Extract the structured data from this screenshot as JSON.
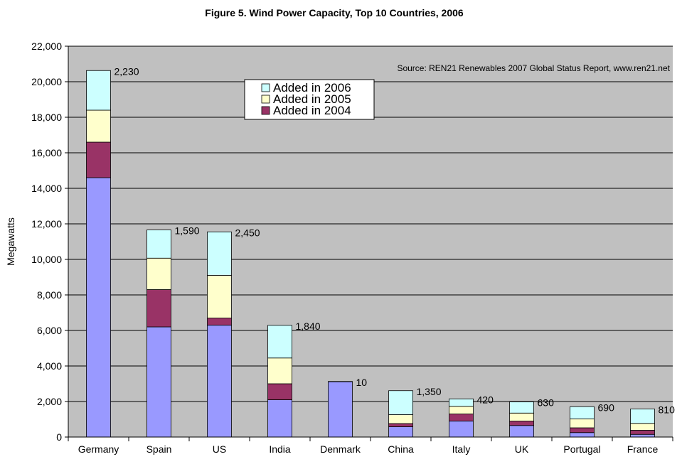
{
  "chart_data": {
    "type": "bar",
    "stacked": true,
    "title": "Figure 5. Wind Power Capacity, Top 10 Countries, 2006",
    "ylabel": "Megawatts",
    "xlabel": "",
    "ylim": [
      0,
      22000
    ],
    "y_ticks": [
      "0",
      "2,000",
      "4,000",
      "6,000",
      "8,000",
      "10,000",
      "12,000",
      "14,000",
      "16,000",
      "18,000",
      "20,000",
      "22,000"
    ],
    "grid": true,
    "legend_position": "top-center",
    "source_note": "Source: REN21 Renewables 2007 Global Status Report, www.ren21.net",
    "categories": [
      "Germany",
      "Spain",
      "US",
      "India",
      "Denmark",
      "China",
      "Italy",
      "UK",
      "Portugal",
      "France"
    ],
    "series": [
      {
        "legend": false,
        "color": "#9999ff",
        "values": [
          14600,
          6200,
          6300,
          2100,
          3120,
          580,
          900,
          650,
          250,
          150
        ]
      },
      {
        "name": "Added in 2004",
        "legend": true,
        "color": "#993366",
        "values": [
          2000,
          2100,
          400,
          900,
          0,
          180,
          400,
          250,
          270,
          230
        ]
      },
      {
        "name": "Added in 2005",
        "legend": true,
        "color": "#ffffcc",
        "values": [
          1800,
          1770,
          2400,
          1450,
          0,
          500,
          430,
          450,
          500,
          390
        ]
      },
      {
        "name": "Added in 2006",
        "legend": true,
        "color": "#ccffff",
        "values": [
          2230,
          1590,
          2450,
          1840,
          10,
          1350,
          420,
          630,
          690,
          810
        ]
      }
    ],
    "data_labels": [
      "2,230",
      "1,590",
      "2,450",
      "1,840",
      "10",
      "1,350",
      "420",
      "630",
      "690",
      "810"
    ],
    "colors": {
      "plot_background": "#c0c0c0",
      "gridline": "#000000"
    }
  }
}
